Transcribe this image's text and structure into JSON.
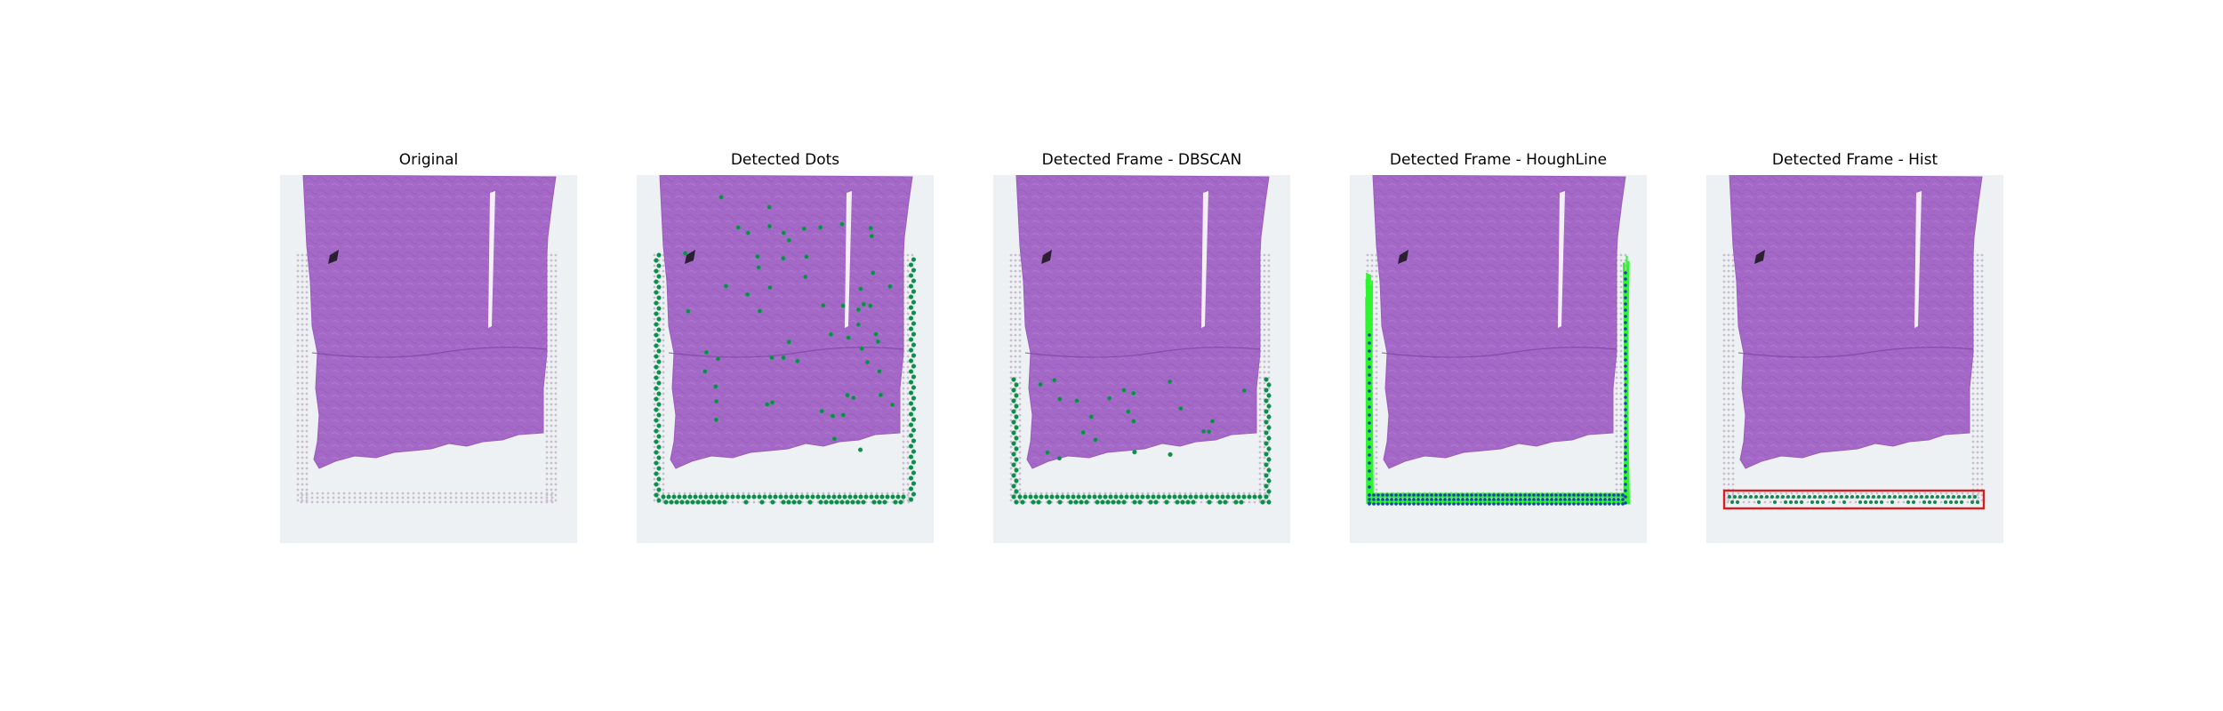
{
  "figure": {
    "panels": [
      {
        "title": "Original",
        "mode": "original"
      },
      {
        "title": "Detected Dots",
        "mode": "dots"
      },
      {
        "title": "Detected Frame - DBSCAN",
        "mode": "dbscan"
      },
      {
        "title": "Detected Frame - HoughLine",
        "mode": "hough"
      },
      {
        "title": "Detected Frame - Hist",
        "mode": "hist"
      }
    ]
  },
  "colors": {
    "slide_bg": "#eef1f3",
    "tissue": "#a468c7",
    "tissue_dark": "#8a4db0",
    "grid_dot": "#b8a9bf",
    "detected_dot": "#0f8a4b",
    "detected_dot_edge": "#1aa85c",
    "hough_line": "#2ef52e",
    "hough_dot": "#1c3fb8",
    "hist_box": "#d81e1e"
  }
}
